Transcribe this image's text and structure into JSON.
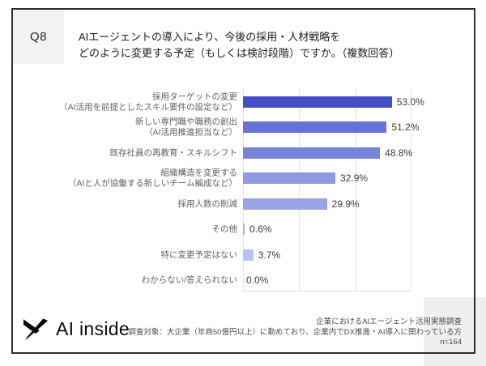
{
  "question": {
    "number": "Q8",
    "text_line1": "AIエージェントの導入により、今後の採用・人材戦略を",
    "text_line2": "どのように変更する予定（もしくは検討段階）ですか。（複数回答）"
  },
  "chart_data": {
    "type": "bar",
    "orientation": "horizontal",
    "title": "",
    "x_axis": {
      "min": 0,
      "max": 60,
      "gridline_step_percent": 20,
      "tick_labels_visible": false
    },
    "grid": true,
    "categories": [
      "採用ターゲットの変更（AI活用を前提としたスキル要件の設定など）",
      "新しい専門職や職務の創出（AI活用推進担当など）",
      "既存社員の再教育・スキルシフト",
      "組織構造を変更する（AIと人が協働する新しいチーム編成など）",
      "採用人数の削減",
      "その他",
      "特に変更予定はない",
      "わからない/答えられない"
    ],
    "values": [
      53.0,
      51.2,
      48.8,
      32.9,
      29.9,
      0.6,
      3.7,
      0.0
    ],
    "rows": [
      {
        "label_line1": "採用ターゲットの変更",
        "label_line2": "（AI活用を前提としたスキル要件の設定など）",
        "value": 53.0,
        "value_label": "53.0%",
        "color": "#424EC6"
      },
      {
        "label_line1": "新しい専門職や職務の創出",
        "label_line2": "（AI活用推進担当など）",
        "value": 51.2,
        "value_label": "51.2%",
        "color": "#6672D5"
      },
      {
        "label_line1": "既存社員の再教育・スキルシフト",
        "label_line2": "",
        "value": 48.8,
        "value_label": "48.8%",
        "color": "#7883DC"
      },
      {
        "label_line1": "組織構造を変更する",
        "label_line2": "（AIと人が協働する新しいチーム編成など）",
        "value": 32.9,
        "value_label": "32.9%",
        "color": "#8E98E3"
      },
      {
        "label_line1": "採用人数の削減",
        "label_line2": "",
        "value": 29.9,
        "value_label": "29.9%",
        "color": "#9BA4E7"
      },
      {
        "label_line1": "その他",
        "label_line2": "",
        "value": 0.6,
        "value_label": "0.6%",
        "color": "#A9B1EB"
      },
      {
        "label_line1": "特に変更予定はない",
        "label_line2": "",
        "value": 3.7,
        "value_label": "3.7%",
        "color": "#BBC2F0"
      },
      {
        "label_line1": "わからない/答えられない",
        "label_line2": "",
        "value": 0.0,
        "value_label": "0.0%",
        "color": "#C9CFF4"
      }
    ]
  },
  "footer": {
    "logo_text": "AI inside",
    "source_line1": "企業におけるAIエージェント活用実態調査",
    "source_line2": "調査対象：大企業（年商50億円以上）に勤めており、企業内でDX推進・AI導入に関わっている方",
    "sample_size": "n=164"
  },
  "colors": {
    "card_border": "#2e2e2e",
    "question_box_bg": "#f2f2f3",
    "corner_accent_bg": "#efeff0",
    "gridline": "#e3e3e6",
    "category_label": "#616161",
    "value_label": "#3b3b3b"
  }
}
